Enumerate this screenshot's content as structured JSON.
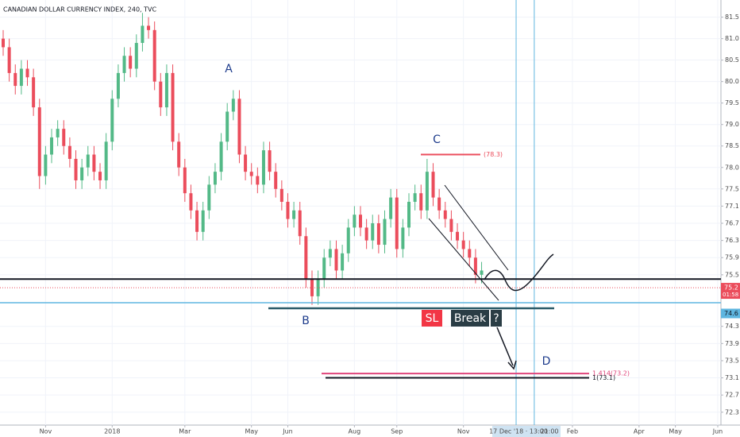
{
  "chart_data": {
    "type": "candlestick",
    "title": "CANADIAN DOLLAR CURRENCY INDEX, 240, TVC",
    "up_color": "#53b987",
    "down_color": "#eb4d5c",
    "grid": true,
    "open": [
      81.0,
      80.8,
      80.2,
      79.9,
      80.3,
      80.1,
      79.4,
      77.8,
      78.3,
      78.7,
      78.9,
      78.5,
      78.2,
      77.7,
      78.0,
      78.3,
      77.9,
      77.7,
      78.6,
      79.6,
      80.2,
      80.6,
      80.3,
      80.9,
      81.3,
      81.2,
      80.0,
      79.4,
      80.2,
      78.6,
      78.0,
      77.4,
      77.0,
      76.5,
      77.0,
      77.6,
      77.9,
      78.6,
      79.3,
      79.6,
      78.3,
      77.9,
      77.8,
      77.6,
      78.4,
      77.9,
      77.5,
      77.2,
      76.8,
      77.0,
      76.4,
      75.4,
      75.0,
      75.4,
      75.9,
      76.1,
      75.6,
      76.0,
      76.6,
      76.9,
      76.6,
      76.3,
      76.7,
      76.2,
      76.8,
      77.3,
      76.1,
      76.6,
      77.2,
      77.4,
      77.0,
      77.9,
      77.3,
      77.0,
      76.8,
      76.5,
      76.3,
      76.1,
      75.9,
      75.5
    ],
    "high": [
      81.2,
      81.0,
      80.4,
      80.5,
      80.5,
      80.3,
      79.6,
      78.5,
      78.9,
      79.1,
      79.1,
      78.7,
      78.4,
      78.2,
      78.5,
      78.5,
      78.1,
      78.8,
      79.8,
      80.4,
      80.8,
      80.8,
      81.1,
      81.6,
      81.5,
      81.4,
      80.2,
      80.4,
      80.4,
      78.8,
      78.2,
      77.6,
      77.2,
      77.2,
      77.8,
      78.1,
      78.8,
      79.5,
      79.8,
      79.8,
      78.5,
      78.1,
      78.0,
      78.6,
      78.6,
      78.1,
      77.7,
      77.4,
      77.2,
      77.2,
      76.6,
      75.6,
      75.6,
      76.1,
      76.3,
      76.3,
      76.2,
      76.8,
      77.1,
      77.1,
      76.8,
      76.9,
      76.9,
      77.0,
      77.5,
      77.5,
      76.8,
      77.4,
      77.6,
      77.6,
      78.2,
      78.1,
      77.5,
      77.2,
      77.0,
      76.7,
      76.5,
      76.3,
      76.1,
      75.8
    ],
    "low": [
      80.6,
      80.0,
      79.7,
      79.7,
      79.9,
      79.2,
      77.5,
      77.6,
      78.1,
      78.5,
      78.3,
      78.0,
      77.5,
      77.5,
      77.8,
      77.7,
      77.5,
      77.5,
      78.4,
      79.4,
      80.0,
      80.1,
      80.1,
      80.7,
      81.0,
      79.8,
      79.2,
      79.2,
      78.4,
      77.8,
      77.2,
      76.8,
      76.3,
      76.3,
      76.8,
      77.4,
      77.7,
      78.4,
      79.1,
      78.1,
      77.7,
      77.6,
      77.4,
      77.4,
      77.7,
      77.3,
      77.0,
      76.6,
      76.6,
      76.2,
      75.2,
      74.8,
      74.8,
      75.2,
      75.7,
      75.4,
      75.4,
      75.8,
      76.4,
      76.4,
      76.1,
      76.1,
      76.0,
      76.0,
      76.6,
      75.9,
      75.9,
      76.4,
      77.0,
      76.8,
      76.8,
      77.1,
      76.8,
      76.6,
      76.3,
      76.1,
      75.9,
      75.7,
      75.3,
      75.3
    ],
    "close": [
      80.8,
      80.2,
      79.9,
      80.3,
      80.1,
      79.4,
      77.8,
      78.3,
      78.7,
      78.9,
      78.5,
      78.2,
      77.7,
      78.0,
      78.3,
      77.9,
      77.7,
      78.6,
      79.6,
      80.2,
      80.6,
      80.3,
      80.9,
      81.3,
      81.2,
      80.0,
      79.4,
      80.2,
      78.6,
      78.0,
      77.4,
      77.0,
      76.5,
      77.0,
      77.6,
      77.9,
      78.6,
      79.3,
      79.6,
      78.3,
      77.9,
      77.8,
      77.6,
      78.4,
      77.9,
      77.5,
      77.2,
      76.8,
      77.0,
      76.4,
      75.4,
      75.0,
      75.4,
      75.9,
      76.1,
      75.6,
      76.0,
      76.6,
      76.9,
      76.6,
      76.3,
      76.7,
      76.2,
      76.8,
      77.3,
      76.1,
      76.6,
      77.2,
      77.4,
      77.0,
      77.9,
      77.3,
      77.0,
      76.8,
      76.5,
      76.3,
      76.1,
      75.9,
      75.5,
      75.6
    ],
    "xlim": [
      0,
      118
    ],
    "xticks": [
      {
        "value": 7,
        "label": "Nov"
      },
      {
        "value": 18,
        "label": "2018"
      },
      {
        "value": 30,
        "label": "Mar"
      },
      {
        "value": 41,
        "label": "May"
      },
      {
        "value": 47,
        "label": "Jun"
      },
      {
        "value": 58,
        "label": "Aug"
      },
      {
        "value": 65,
        "label": "Sep"
      },
      {
        "value": 76,
        "label": "Nov"
      },
      {
        "value": 94,
        "label": "Feb"
      },
      {
        "value": 105,
        "label": "Apr"
      },
      {
        "value": 111,
        "label": "May"
      },
      {
        "value": 118,
        "label": "Jun"
      }
    ],
    "ylim": [
      72.0,
      81.9
    ],
    "yticks": [
      81.5,
      {
        "value": 81,
        "label": "81.0"
      },
      80.5,
      {
        "value": 80,
        "label": "80.0"
      },
      79.5,
      {
        "value": 79,
        "label": "79.0"
      },
      78.5,
      {
        "value": 78,
        "label": "78.0"
      },
      77.5,
      77.1,
      76.7,
      76.3,
      75.9,
      75.5,
      74.3,
      73.9,
      73.5,
      73.1,
      72.7,
      72.3
    ],
    "vertical_lines": [
      84.7,
      87.7
    ],
    "last_price": 75.2,
    "countdown": "01:58",
    "marker_price": 74.6,
    "levels": [
      {
        "value": 75.4,
        "color": "#131722"
      },
      {
        "value": 74.85,
        "color": "#5fb6e0"
      }
    ],
    "fib_lines": [
      {
        "value": 78.3,
        "label": "(78.3)",
        "color": "#eb4d5c"
      },
      {
        "value": 73.2,
        "label": "1.414(73.2)",
        "color": "#e0457b"
      },
      {
        "value": 73.1,
        "label": "1(73.1)",
        "color": "#131722"
      }
    ],
    "annotations": [
      "A",
      "B",
      "C",
      "D",
      "SL",
      "Break",
      "?"
    ],
    "crosshair_labels": [
      "17 Dec '18 · 13:00",
      "21:00"
    ]
  }
}
